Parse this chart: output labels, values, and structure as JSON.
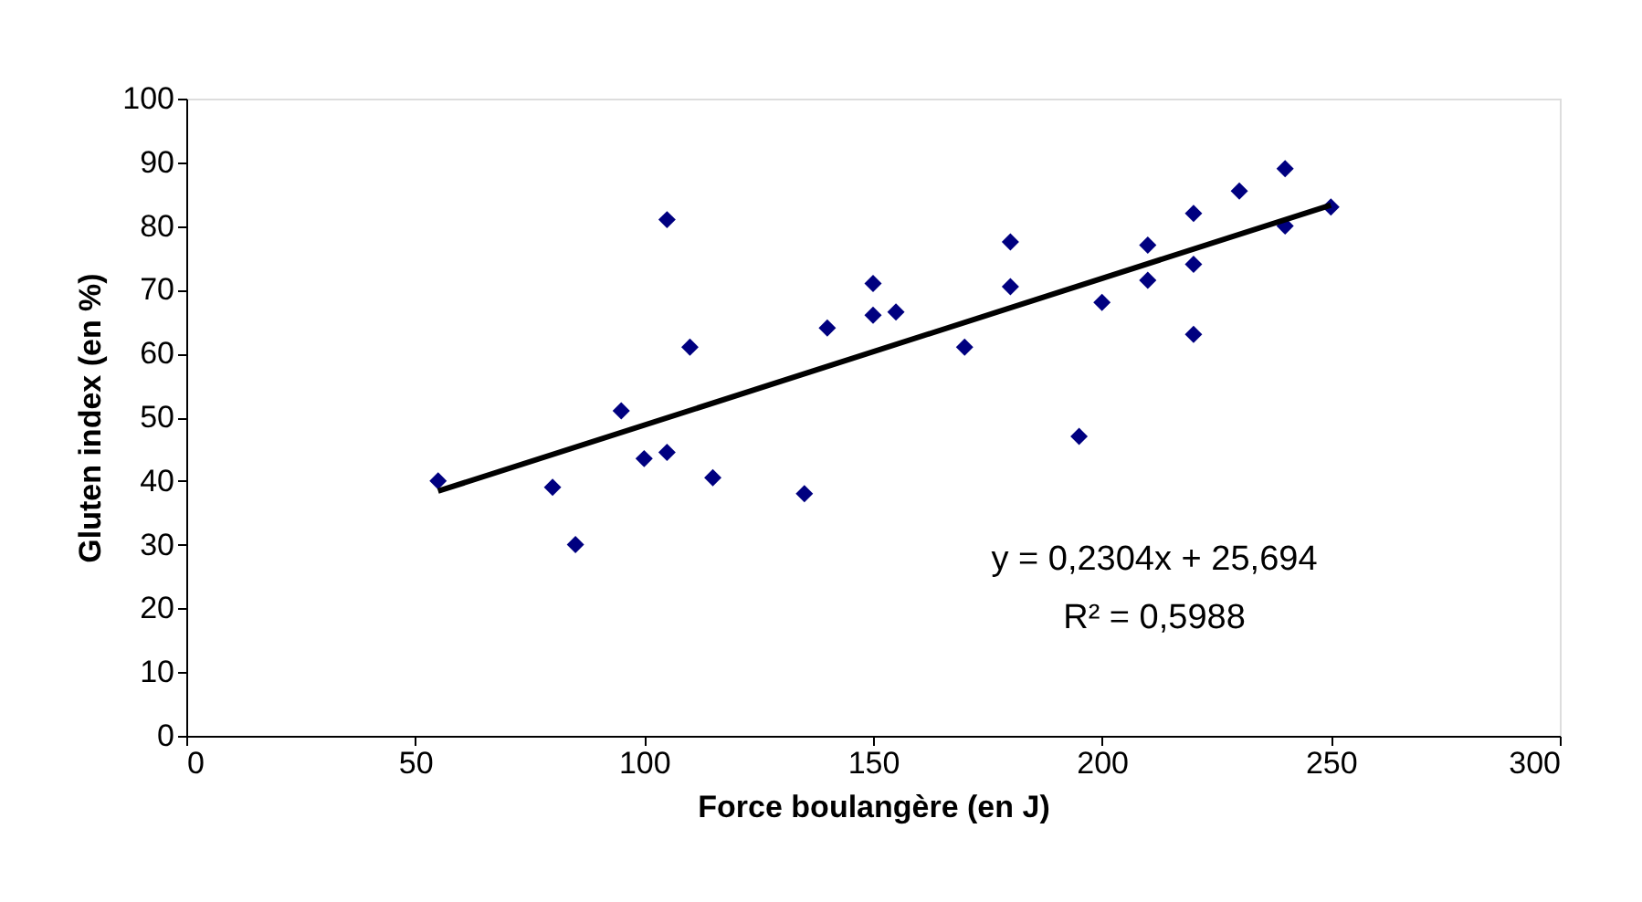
{
  "chart_data": {
    "type": "scatter",
    "xlabel": "Force boulangère (en J)",
    "ylabel": "Gluten index (en %)",
    "xlim": [
      0,
      300
    ],
    "xticks": [
      0,
      50,
      100,
      150,
      200,
      250,
      300
    ],
    "ylim": [
      0,
      100
    ],
    "yticks": [
      0,
      10,
      20,
      30,
      40,
      50,
      60,
      70,
      80,
      90,
      100
    ],
    "grid": false,
    "series": [
      {
        "color": "#000080",
        "marker": "diamond",
        "x": [
          55,
          80,
          85,
          95,
          100,
          105,
          105,
          110,
          115,
          135,
          140,
          150,
          150,
          155,
          170,
          180,
          180,
          195,
          200,
          210,
          210,
          220,
          220,
          220,
          230,
          240,
          240,
          250
        ],
        "values": [
          40,
          39,
          30,
          51,
          43.5,
          81,
          44.5,
          61,
          40.5,
          38,
          64,
          71,
          66,
          66.5,
          61,
          77.5,
          70.5,
          47,
          68,
          77,
          71.5,
          82,
          74,
          63,
          85.5,
          89,
          80,
          83
        ]
      },
      {
        "type": "line",
        "color": "#000000",
        "line_style": "solid",
        "x": [
          55,
          250
        ],
        "values": [
          38.4,
          83.3
        ]
      }
    ],
    "annotations": [
      "y = 0,2304x + 25,694",
      "R² = 0,5988"
    ]
  }
}
